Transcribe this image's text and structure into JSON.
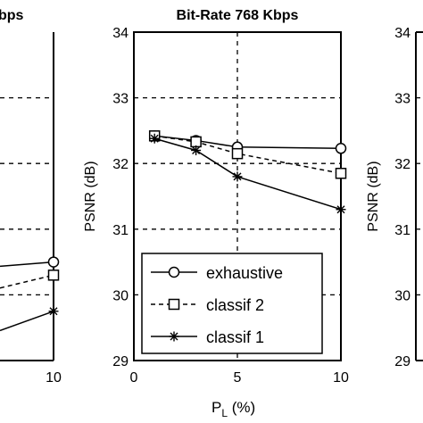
{
  "left_panel_fragment": {
    "title_fragment": "bps",
    "x_tick_labels": [
      "10"
    ],
    "chart_data": {
      "type": "line",
      "x": [
        10
      ],
      "series": [
        {
          "name": "exhaustive",
          "values": [
            30.5
          ]
        },
        {
          "name": "classif 2",
          "values": [
            30.3
          ]
        },
        {
          "name": "classif 1",
          "values": [
            29.75
          ]
        }
      ]
    }
  },
  "right_panel_fragment": {
    "ylabel": "PSNR (dB)",
    "y_tick_labels": [
      "34",
      "33",
      "32",
      "31",
      "30",
      "29"
    ]
  },
  "chart_data": {
    "type": "line",
    "title": "Bit-Rate 768 Kbps",
    "xlabel_main": "P",
    "xlabel_sub": "L",
    "xlabel_rest": " (%)",
    "ylabel": "PSNR (dB)",
    "xlim": [
      0,
      10
    ],
    "ylim": [
      29,
      34
    ],
    "x_ticks": [
      0,
      5,
      10
    ],
    "y_ticks": [
      29,
      30,
      31,
      32,
      33,
      34
    ],
    "grid": true,
    "legend_position": "bottom-right",
    "x": [
      1,
      3,
      5,
      10
    ],
    "series": [
      {
        "name": "exhaustive",
        "marker": "circle",
        "line": "solid",
        "values": [
          32.42,
          32.35,
          32.25,
          32.23
        ]
      },
      {
        "name": "classif 2",
        "marker": "square",
        "line": "dashed",
        "values": [
          32.42,
          32.33,
          32.15,
          31.85
        ]
      },
      {
        "name": "classif 1",
        "marker": "star",
        "line": "solid",
        "values": [
          32.38,
          32.2,
          31.8,
          31.3
        ]
      }
    ]
  }
}
